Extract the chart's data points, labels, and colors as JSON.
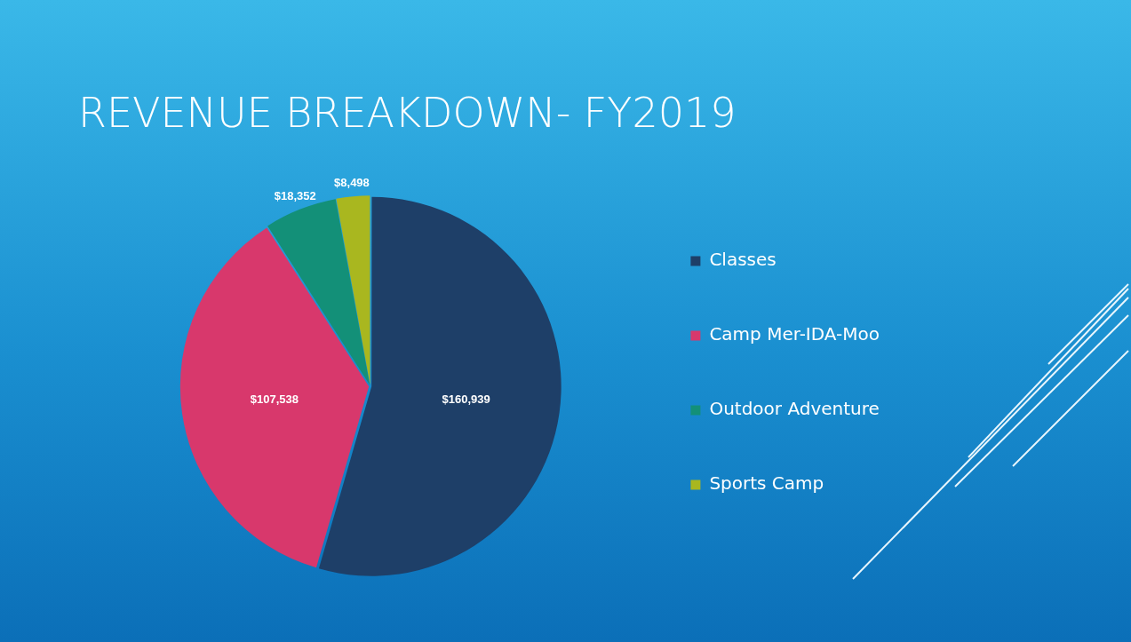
{
  "chart_data": {
    "type": "pie",
    "title": "REVENUE BREAKDOWN- FY2019",
    "categories": [
      "Classes",
      "Camp Mer-IDA-Moo",
      "Outdoor Adventure",
      "Sports Camp"
    ],
    "values": [
      160939,
      107538,
      18352,
      8498
    ],
    "colors": [
      "#1e3f68",
      "#d8386c",
      "#139078",
      "#a9b71f"
    ],
    "value_labels": [
      "$160,939",
      "$107,538",
      "$18,352",
      "$8,498"
    ],
    "legend": "right"
  }
}
